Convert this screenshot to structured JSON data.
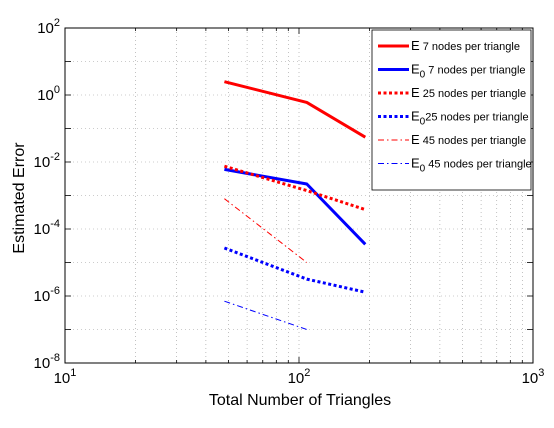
{
  "chart_data": {
    "type": "line",
    "title": "",
    "xlabel": "Total Number of Triangles",
    "ylabel": "Estimated Error",
    "x_scale": "log",
    "y_scale": "log",
    "xlim": [
      10,
      1000
    ],
    "ylim": [
      1e-08,
      100
    ],
    "x_ticks": [
      {
        "value": 10,
        "base": "10",
        "exp": "1"
      },
      {
        "value": 100,
        "base": "10",
        "exp": "2"
      },
      {
        "value": 1000,
        "base": "10",
        "exp": "3"
      }
    ],
    "y_ticks": [
      {
        "value": 1e-08,
        "base": "10",
        "exp": "-8"
      },
      {
        "value": 1e-06,
        "base": "10",
        "exp": "-6"
      },
      {
        "value": 0.0001,
        "base": "10",
        "exp": "-4"
      },
      {
        "value": 0.01,
        "base": "10",
        "exp": "-2"
      },
      {
        "value": 1,
        "base": "10",
        "exp": "0"
      },
      {
        "value": 100,
        "base": "10",
        "exp": "2"
      }
    ],
    "grid": true,
    "legend_position": "top-right",
    "series": [
      {
        "name": "E   7 nodes per triangle",
        "sym": "E",
        "sub": "",
        "label": "  7 nodes per triangle",
        "color": "#ff0000",
        "style": "solid",
        "width": "thick",
        "x": [
          48,
          108,
          192
        ],
        "y": [
          2.5,
          0.6,
          0.055
        ]
      },
      {
        "name": "E0 7 nodes per triangle",
        "sym": "E",
        "sub": "0",
        "label": " 7 nodes per triangle",
        "color": "#0000ff",
        "style": "solid",
        "width": "thick",
        "x": [
          48,
          108,
          192
        ],
        "y": [
          0.006,
          0.0022,
          3.5e-05
        ]
      },
      {
        "name": "E 25 nodes per triangle",
        "sym": "E",
        "sub": "",
        "label": " 25 nodes per triangle",
        "color": "#ff0000",
        "style": "dotted",
        "width": "thick",
        "x": [
          48,
          108,
          192
        ],
        "y": [
          0.0075,
          0.0014,
          0.00038
        ]
      },
      {
        "name": "E0 25 nodes per triangle",
        "sym": "E",
        "sub": "0",
        "label": "25 nodes per triangle",
        "color": "#0000ff",
        "style": "dotted",
        "width": "thick",
        "x": [
          48,
          108,
          192
        ],
        "y": [
          2.7e-05,
          3.2e-06,
          1.3e-06
        ]
      },
      {
        "name": "E  45 nodes per triangle",
        "sym": "E",
        "sub": "",
        "label": "  45 nodes per triangle",
        "color": "#ff0000",
        "style": "dashdot",
        "width": "thin",
        "x": [
          48,
          108
        ],
        "y": [
          0.0008,
          1e-05
        ]
      },
      {
        "name": "E0 45 nodes per triangle",
        "sym": "E",
        "sub": "0",
        "label": " 45 nodes per triangle",
        "color": "#0000ff",
        "style": "dashdot",
        "width": "thin",
        "x": [
          48,
          108
        ],
        "y": [
          7e-07,
          1e-07
        ]
      }
    ]
  }
}
